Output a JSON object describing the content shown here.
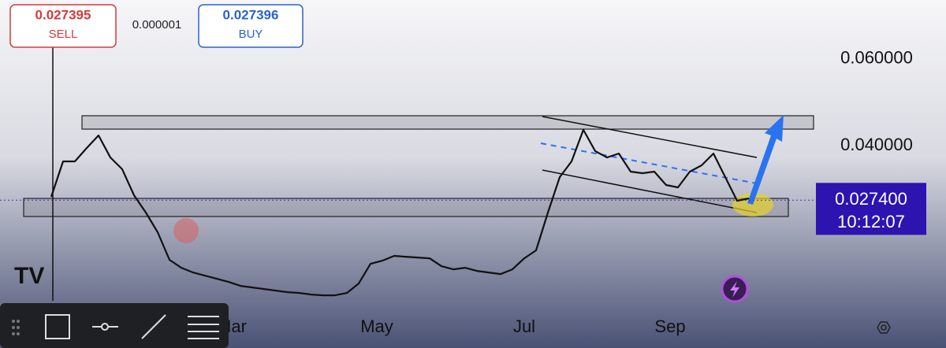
{
  "quote": {
    "sell_price": "0.027395",
    "sell_label": "SELL",
    "spread": "0.000001",
    "buy_price": "0.027396",
    "buy_label": "BUY"
  },
  "chart_data": {
    "type": "line",
    "color": "#111111",
    "values": [
      0.02818,
      0.03636,
      0.03636,
      0.03945,
      0.04236,
      0.03727,
      0.03455,
      0.02855,
      0.02455,
      0.02,
      0.01364,
      0.01182,
      0.01073,
      0.01,
      0.00927,
      0.00855,
      0.00764,
      0.00727,
      0.00691,
      0.00655,
      0.00618,
      0.006,
      0.00564,
      0.00545,
      0.00545,
      0.006,
      0.00818,
      0.01273,
      0.01345,
      0.01455,
      0.01436,
      0.01418,
      0.014,
      0.01218,
      0.01145,
      0.01182,
      0.01109,
      0.01073,
      0.01036,
      0.01145,
      0.014,
      0.01582,
      0.02455,
      0.03273,
      0.03636,
      0.04364,
      0.03873,
      0.03727,
      0.03818,
      0.034,
      0.03364,
      0.034,
      0.03091,
      0.03036,
      0.034,
      0.03545,
      0.03818,
      0.03273,
      0.02727,
      0.02782
    ],
    "ylim": [
      -0.0067,
      0.0736
    ],
    "yticks": [
      {
        "value": 0.06,
        "label": "0.060000"
      },
      {
        "value": 0.04,
        "label": "0.040000"
      }
    ],
    "x_labels": [
      "Mar",
      "May",
      "Jul",
      "Sep"
    ],
    "current_price": {
      "value": 0.0274,
      "label": "0.027400"
    },
    "countdown": "10:12:07"
  }
}
